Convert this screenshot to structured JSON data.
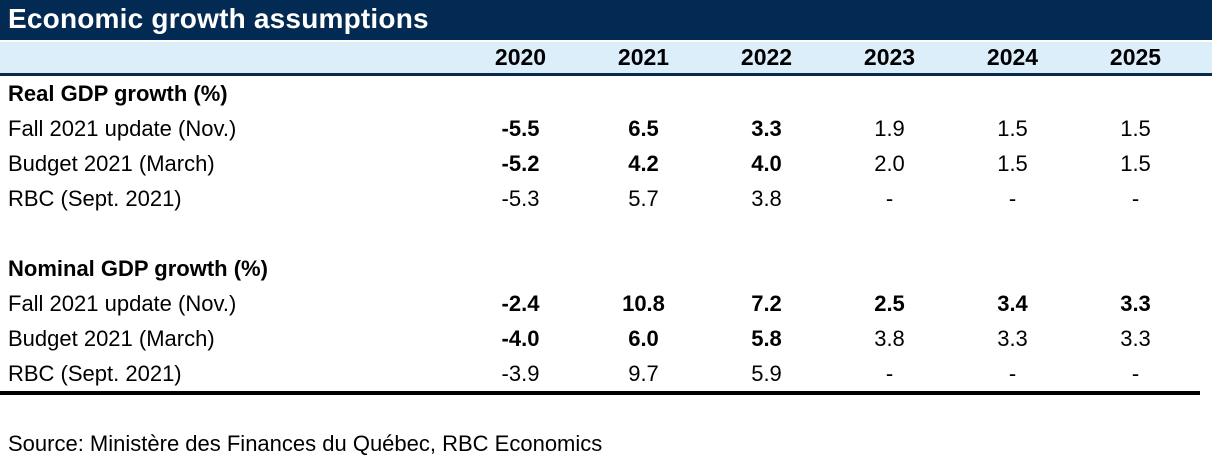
{
  "title": "Economic growth assumptions",
  "colors": {
    "titlebar_navy": "#032a52",
    "header_blue": "#ddeefb",
    "divider_navy": "#0b2a4a",
    "rule_black": "#000000"
  },
  "table": {
    "years": [
      "2020",
      "2021",
      "2022",
      "2023",
      "2024",
      "2025"
    ],
    "sections": [
      {
        "heading": "Real GDP growth (%)",
        "rows": [
          {
            "label": "Fall 2021 update (Nov.)",
            "values": [
              "-5.5",
              "6.5",
              "3.3",
              "1.9",
              "1.5",
              "1.5"
            ],
            "bold": [
              true,
              true,
              true,
              false,
              false,
              false
            ]
          },
          {
            "label": "Budget 2021 (March)",
            "values": [
              "-5.2",
              "4.2",
              "4.0",
              "2.0",
              "1.5",
              "1.5"
            ],
            "bold": [
              true,
              true,
              true,
              false,
              false,
              false
            ]
          },
          {
            "label": "RBC (Sept. 2021)",
            "values": [
              "-5.3",
              "5.7",
              "3.8",
              "-",
              "-",
              "-"
            ],
            "bold": [
              false,
              false,
              false,
              false,
              false,
              false
            ]
          }
        ]
      },
      {
        "heading": "Nominal GDP growth (%)",
        "rows": [
          {
            "label": "Fall 2021 update (Nov.)",
            "values": [
              "-2.4",
              "10.8",
              "7.2",
              "2.5",
              "3.4",
              "3.3"
            ],
            "bold": [
              true,
              true,
              true,
              true,
              true,
              true
            ]
          },
          {
            "label": "Budget 2021 (March)",
            "values": [
              "-4.0",
              "6.0",
              "5.8",
              "3.8",
              "3.3",
              "3.3"
            ],
            "bold": [
              true,
              true,
              true,
              false,
              false,
              false
            ]
          },
          {
            "label": "RBC (Sept. 2021)",
            "values": [
              "-3.9",
              "9.7",
              "5.9",
              "-",
              "-",
              "-"
            ],
            "bold": [
              false,
              false,
              false,
              false,
              false,
              false
            ]
          }
        ]
      }
    ]
  },
  "source": "Source: Ministère des Finances du Québec, RBC Economics"
}
